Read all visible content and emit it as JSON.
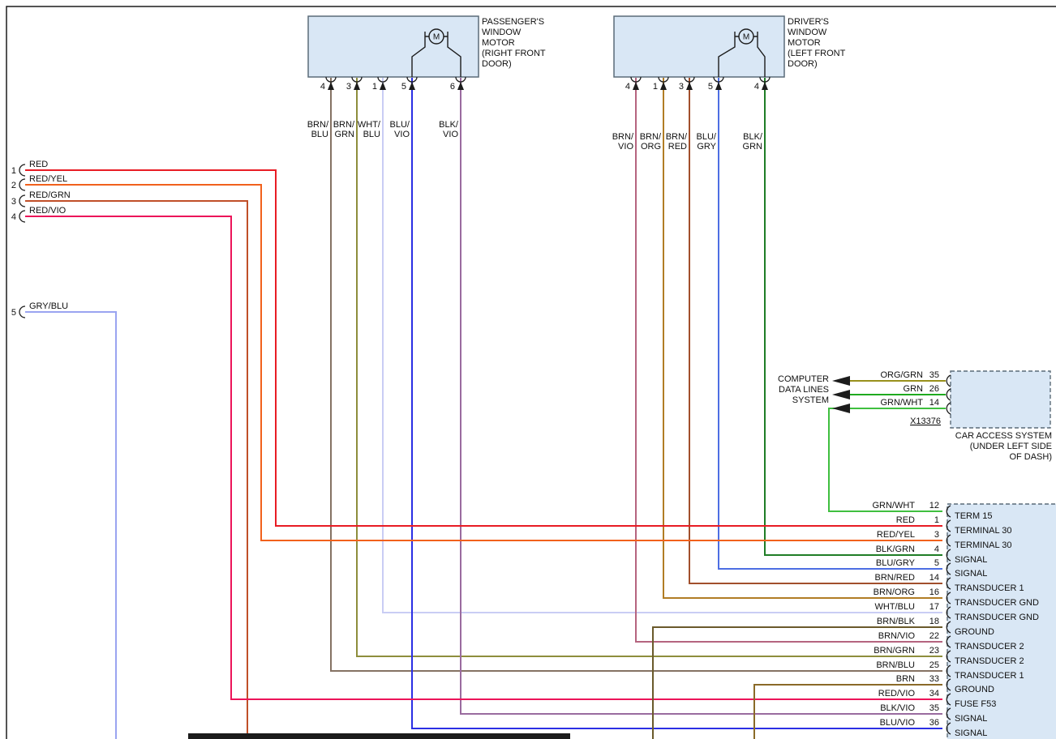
{
  "style": {
    "background": "#ffffff",
    "box_fill": "#d9e7f5",
    "box_border": "#5a6b78",
    "frame": "#1c1c1c",
    "text": "#101010"
  },
  "passenger_motor": {
    "title_lines": [
      "PASSENGER'S",
      "WINDOW",
      "MOTOR",
      "(RIGHT FRONT",
      "DOOR)"
    ],
    "motor_symbol": "M",
    "pins": [
      {
        "num": "4",
        "wire": "BRN/BLU",
        "color": "#857263"
      },
      {
        "num": "3",
        "wire": "BRN/GRN",
        "color": "#8e8e3c"
      },
      {
        "num": "1",
        "wire": "WHT/BLU",
        "color": "#c9cdf4"
      },
      {
        "num": "5",
        "wire": "BLU/VIO",
        "color": "#2b2fe4"
      },
      {
        "num": "6",
        "wire": "BLK/VIO",
        "color": "#9a6b9f"
      }
    ]
  },
  "driver_motor": {
    "title_lines": [
      "DRIVER'S",
      "WINDOW",
      "MOTOR",
      "(LEFT FRONT",
      "DOOR)"
    ],
    "motor_symbol": "M",
    "pins": [
      {
        "num": "4",
        "wire": "BRN/VIO",
        "color": "#b5647f"
      },
      {
        "num": "1",
        "wire": "BRN/ORG",
        "color": "#b17d25"
      },
      {
        "num": "3",
        "wire": "BRN/RED",
        "color": "#a14f2c"
      },
      {
        "num": "5",
        "wire": "BLU/GRY",
        "color": "#4d6ee3"
      },
      {
        "num": "4",
        "wire": "BLK/GRN",
        "color": "#1f7d26"
      }
    ]
  },
  "left_wires": [
    {
      "num": "1",
      "name": "RED",
      "color": "#e81c24"
    },
    {
      "num": "2",
      "name": "RED/YEL",
      "color": "#f1611c"
    },
    {
      "num": "3",
      "name": "RED/GRN",
      "color": "#c04f28"
    },
    {
      "num": "4",
      "name": "RED/VIO",
      "color": "#ec1459"
    },
    {
      "num": "5",
      "name": "GRY/BLU",
      "color": "#9aa4f0"
    }
  ],
  "computer_data_lines": {
    "label_lines": [
      "COMPUTER",
      "DATA LINES",
      "SYSTEM"
    ],
    "wires": [
      {
        "name": "ORG/GRN",
        "pin": "35",
        "color": "#99901c"
      },
      {
        "name": "GRN",
        "pin": "26",
        "color": "#1faa1f"
      },
      {
        "name": "GRN/WHT",
        "pin": "14",
        "color": "#3fbf3f"
      }
    ],
    "connector_id": "X13376"
  },
  "car_access_system": {
    "label_lines": [
      "CAR ACCESS SYSTEM",
      "(UNDER LEFT SIDE",
      "OF DASH)"
    ]
  },
  "main_connector": {
    "rows": [
      {
        "wire": "GRN/WHT",
        "pin": "12",
        "terminal": "TERM 15",
        "color": "#3fbf3f"
      },
      {
        "wire": "RED",
        "pin": "1",
        "terminal": "TERMINAL 30",
        "color": "#e81c24"
      },
      {
        "wire": "RED/YEL",
        "pin": "3",
        "terminal": "TERMINAL 30",
        "color": "#f1611c"
      },
      {
        "wire": "BLK/GRN",
        "pin": "4",
        "terminal": "SIGNAL",
        "color": "#1f7d26"
      },
      {
        "wire": "BLU/GRY",
        "pin": "5",
        "terminal": "SIGNAL",
        "color": "#4d6ee3"
      },
      {
        "wire": "BRN/RED",
        "pin": "14",
        "terminal": "TRANSDUCER 1",
        "color": "#a14f2c"
      },
      {
        "wire": "BRN/ORG",
        "pin": "16",
        "terminal": "TRANSDUCER GND",
        "color": "#b17d25"
      },
      {
        "wire": "WHT/BLU",
        "pin": "17",
        "terminal": "TRANSDUCER GND",
        "color": "#c9cdf4"
      },
      {
        "wire": "BRN/BLK",
        "pin": "18",
        "terminal": "GROUND",
        "color": "#6a5a2b"
      },
      {
        "wire": "BRN/VIO",
        "pin": "22",
        "terminal": "TRANSDUCER 2",
        "color": "#b5647f"
      },
      {
        "wire": "BRN/GRN",
        "pin": "23",
        "terminal": "TRANSDUCER 2",
        "color": "#8e8e3c"
      },
      {
        "wire": "BRN/BLU",
        "pin": "25",
        "terminal": "TRANSDUCER 1",
        "color": "#857263"
      },
      {
        "wire": "BRN",
        "pin": "33",
        "terminal": "GROUND",
        "color": "#8a6a28"
      },
      {
        "wire": "RED/VIO",
        "pin": "34",
        "terminal": "FUSE F53",
        "color": "#ec1459"
      },
      {
        "wire": "BLK/VIO",
        "pin": "35",
        "terminal": "SIGNAL",
        "color": "#9a6b9f"
      },
      {
        "wire": "BLU/VIO",
        "pin": "36",
        "terminal": "SIGNAL",
        "color": "#2b2fe4"
      }
    ]
  }
}
